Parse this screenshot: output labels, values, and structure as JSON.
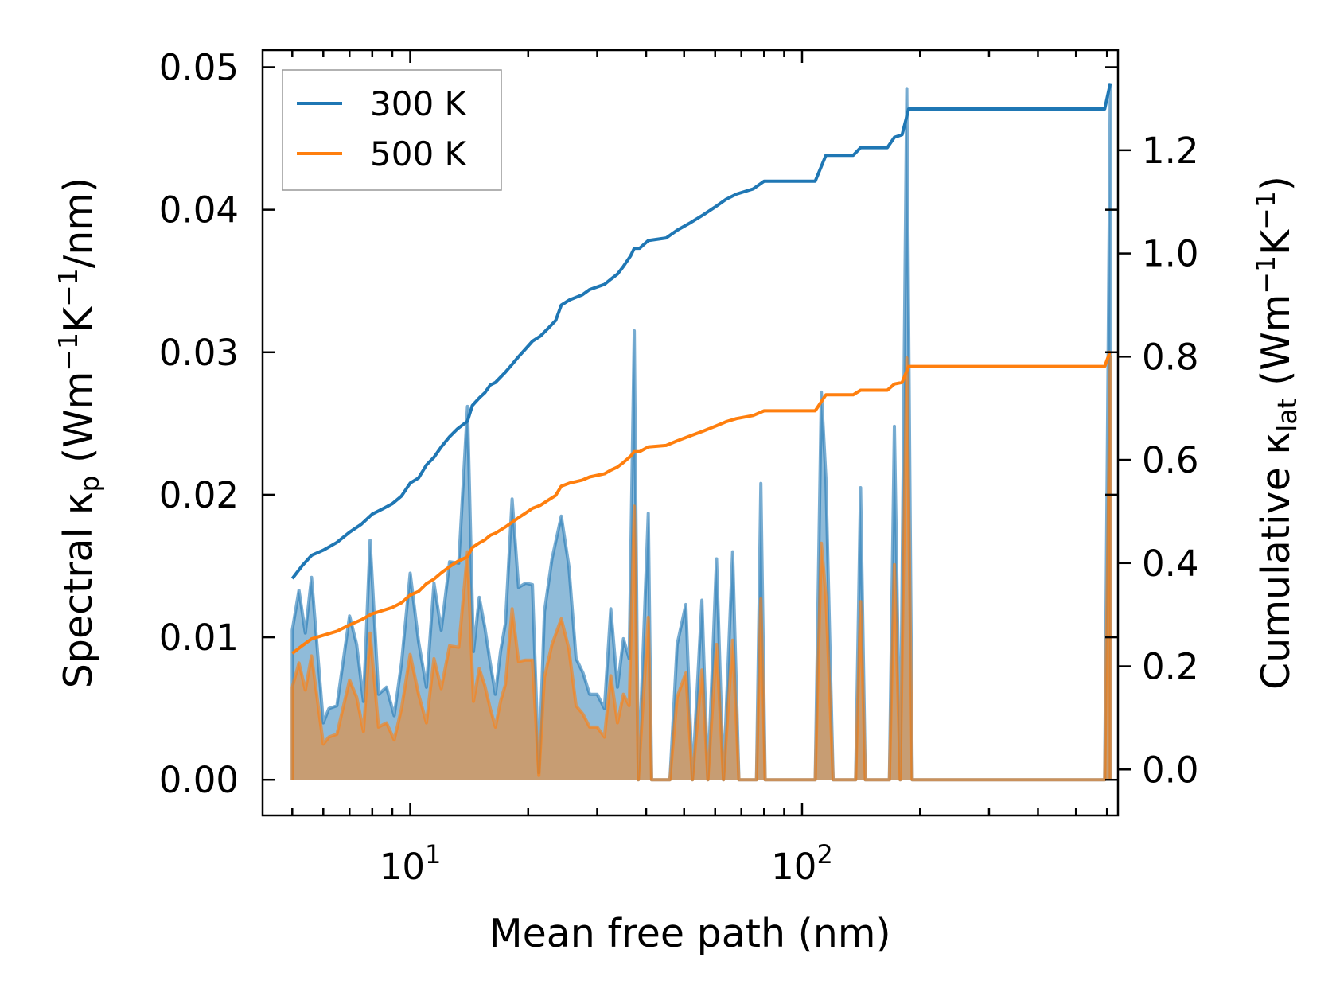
{
  "chart_data": {
    "type": "line",
    "xscale": "log",
    "xlim": [
      4.2,
      640
    ],
    "ylim_left": [
      -0.0025,
      0.0512
    ],
    "ylim_right": [
      -0.089,
      1.394
    ],
    "xlabel": "Mean free path (nm)",
    "ylabel_left": {
      "prefix": "Spectral κ",
      "sub": "p",
      "rest": " (Wm",
      "sup1": "−1",
      "mid": "K",
      "sup2": "−1",
      "end": "/nm)"
    },
    "ylabel_right": {
      "prefix": "Cumulative κ",
      "sub": "lat",
      "rest": " (Wm",
      "sup1": "−1",
      "mid": "K",
      "sup2": "−1",
      "end": ")"
    },
    "xticks": [
      {
        "value": 10,
        "base": "10",
        "exp": "1"
      },
      {
        "value": 100,
        "base": "10",
        "exp": "2"
      }
    ],
    "yticks_left": [
      {
        "value": 0.0,
        "label": "0.00"
      },
      {
        "value": 0.01,
        "label": "0.01"
      },
      {
        "value": 0.02,
        "label": "0.02"
      },
      {
        "value": 0.03,
        "label": "0.03"
      },
      {
        "value": 0.04,
        "label": "0.04"
      },
      {
        "value": 0.05,
        "label": "0.05"
      }
    ],
    "yticks_right": [
      {
        "value": 0.0,
        "label": "0.0"
      },
      {
        "value": 0.2,
        "label": "0.2"
      },
      {
        "value": 0.4,
        "label": "0.4"
      },
      {
        "value": 0.6,
        "label": "0.6"
      },
      {
        "value": 0.8,
        "label": "0.8"
      },
      {
        "value": 1.0,
        "label": "1.0"
      },
      {
        "value": 1.2,
        "label": "1.2"
      }
    ],
    "legend": {
      "placement": "top-left",
      "entries": [
        {
          "label": "300 K",
          "color": "#1f77b4"
        },
        {
          "label": "500 K",
          "color": "#ff7f0e"
        }
      ]
    },
    "series": [
      {
        "name": "300 K",
        "color": "#1f77b4",
        "spectral": [
          [
            5.0,
            0.0
          ],
          [
            5.0,
            0.0105
          ],
          [
            5.2,
            0.0133
          ],
          [
            5.4,
            0.0103
          ],
          [
            5.6,
            0.0142
          ],
          [
            6.0,
            0.004
          ],
          [
            6.2,
            0.005
          ],
          [
            6.5,
            0.0052
          ],
          [
            7.0,
            0.0115
          ],
          [
            7.3,
            0.0095
          ],
          [
            7.6,
            0.0055
          ],
          [
            7.9,
            0.0168
          ],
          [
            8.3,
            0.006
          ],
          [
            8.7,
            0.0065
          ],
          [
            9.1,
            0.0045
          ],
          [
            9.5,
            0.0082
          ],
          [
            10.0,
            0.0145
          ],
          [
            10.5,
            0.0097
          ],
          [
            11.0,
            0.0065
          ],
          [
            11.5,
            0.0138
          ],
          [
            12.0,
            0.0105
          ],
          [
            12.6,
            0.0153
          ],
          [
            13.3,
            0.0152
          ],
          [
            14.0,
            0.0262
          ],
          [
            14.5,
            0.009
          ],
          [
            15.0,
            0.0128
          ],
          [
            15.5,
            0.0107
          ],
          [
            16.0,
            0.0082
          ],
          [
            16.5,
            0.006
          ],
          [
            17.0,
            0.009
          ],
          [
            17.5,
            0.011
          ],
          [
            18.2,
            0.0197
          ],
          [
            18.9,
            0.0135
          ],
          [
            19.7,
            0.0138
          ],
          [
            20.5,
            0.0137
          ],
          [
            21.3,
            0.0005
          ],
          [
            22.0,
            0.0118
          ],
          [
            23.0,
            0.0155
          ],
          [
            24.3,
            0.0185
          ],
          [
            25.4,
            0.015
          ],
          [
            26.5,
            0.0085
          ],
          [
            27.6,
            0.0075
          ],
          [
            28.7,
            0.006
          ],
          [
            30.0,
            0.006
          ],
          [
            31.3,
            0.005
          ],
          [
            32.5,
            0.012
          ],
          [
            33.8,
            0.0065
          ],
          [
            35.0,
            0.0099
          ],
          [
            36.2,
            0.0085
          ],
          [
            37.3,
            0.0315
          ],
          [
            38.2,
            0.0
          ],
          [
            40.5,
            0.0187
          ],
          [
            41.3,
            0.0
          ],
          [
            46.0,
            0.0
          ],
          [
            48.0,
            0.0095
          ],
          [
            50.5,
            0.0123
          ],
          [
            52.5,
            0.0
          ],
          [
            55.5,
            0.0126
          ],
          [
            57.5,
            0.0
          ],
          [
            60.5,
            0.0155
          ],
          [
            63.0,
            0.0
          ],
          [
            66.5,
            0.016
          ],
          [
            69.0,
            0.0
          ],
          [
            76.5,
            0.0
          ],
          [
            78.5,
            0.0208
          ],
          [
            80.5,
            0.0
          ],
          [
            108.0,
            0.0
          ],
          [
            112.0,
            0.0272
          ],
          [
            115.0,
            0.0212
          ],
          [
            120.0,
            0.0
          ],
          [
            137.0,
            0.0
          ],
          [
            141.0,
            0.0205
          ],
          [
            145.0,
            0.0
          ],
          [
            167.0,
            0.0
          ],
          [
            172.0,
            0.0248
          ],
          [
            178.0,
            0.0
          ],
          [
            185.0,
            0.0485
          ],
          [
            191.0,
            0.0
          ],
          [
            592.0,
            0.0
          ],
          [
            612.0,
            0.0487
          ],
          [
            612.0,
            0.0
          ]
        ],
        "cumulative": [
          [
            5.0,
            0.37
          ],
          [
            5.3,
            0.395
          ],
          [
            5.6,
            0.415
          ],
          [
            6.0,
            0.425
          ],
          [
            6.5,
            0.44
          ],
          [
            7.0,
            0.46
          ],
          [
            7.5,
            0.475
          ],
          [
            8.0,
            0.495
          ],
          [
            8.5,
            0.505
          ],
          [
            9.0,
            0.515
          ],
          [
            9.5,
            0.53
          ],
          [
            10.0,
            0.555
          ],
          [
            10.5,
            0.565
          ],
          [
            11.0,
            0.59
          ],
          [
            11.5,
            0.605
          ],
          [
            12.0,
            0.625
          ],
          [
            12.6,
            0.645
          ],
          [
            13.2,
            0.66
          ],
          [
            14.0,
            0.675
          ],
          [
            14.4,
            0.705
          ],
          [
            15.0,
            0.72
          ],
          [
            15.5,
            0.73
          ],
          [
            16.0,
            0.745
          ],
          [
            16.5,
            0.75
          ],
          [
            17.5,
            0.77
          ],
          [
            18.2,
            0.785
          ],
          [
            18.9,
            0.8
          ],
          [
            19.7,
            0.815
          ],
          [
            20.5,
            0.83
          ],
          [
            21.5,
            0.84
          ],
          [
            22.5,
            0.855
          ],
          [
            23.5,
            0.87
          ],
          [
            24.3,
            0.9
          ],
          [
            25.5,
            0.91
          ],
          [
            26.5,
            0.915
          ],
          [
            27.5,
            0.92
          ],
          [
            28.7,
            0.93
          ],
          [
            30.0,
            0.935
          ],
          [
            31.3,
            0.94
          ],
          [
            32.5,
            0.95
          ],
          [
            33.8,
            0.96
          ],
          [
            35.0,
            0.975
          ],
          [
            36.5,
            0.995
          ],
          [
            37.3,
            1.01
          ],
          [
            38.5,
            1.01
          ],
          [
            40.5,
            1.025
          ],
          [
            45.0,
            1.03
          ],
          [
            48.0,
            1.045
          ],
          [
            52.0,
            1.06
          ],
          [
            56.0,
            1.075
          ],
          [
            60.0,
            1.09
          ],
          [
            64.0,
            1.105
          ],
          [
            68.0,
            1.115
          ],
          [
            75.0,
            1.125
          ],
          [
            80.0,
            1.14
          ],
          [
            108.0,
            1.14
          ],
          [
            115.0,
            1.19
          ],
          [
            135.0,
            1.19
          ],
          [
            141.0,
            1.205
          ],
          [
            165.0,
            1.205
          ],
          [
            172.0,
            1.225
          ],
          [
            180.0,
            1.23
          ],
          [
            187.0,
            1.28
          ],
          [
            592.0,
            1.28
          ],
          [
            612.0,
            1.33
          ]
        ]
      },
      {
        "name": "500 K",
        "color": "#ff7f0e",
        "spectral": [
          [
            5.0,
            0.0
          ],
          [
            5.0,
            0.0065
          ],
          [
            5.2,
            0.0082
          ],
          [
            5.4,
            0.0063
          ],
          [
            5.6,
            0.0087
          ],
          [
            6.0,
            0.0025
          ],
          [
            6.2,
            0.003
          ],
          [
            6.5,
            0.0032
          ],
          [
            7.0,
            0.007
          ],
          [
            7.3,
            0.0058
          ],
          [
            7.6,
            0.0034
          ],
          [
            7.9,
            0.0103
          ],
          [
            8.3,
            0.0037
          ],
          [
            8.7,
            0.004
          ],
          [
            9.1,
            0.0028
          ],
          [
            9.5,
            0.005
          ],
          [
            10.0,
            0.0088
          ],
          [
            10.5,
            0.006
          ],
          [
            11.0,
            0.004
          ],
          [
            11.5,
            0.0085
          ],
          [
            12.0,
            0.0064
          ],
          [
            12.6,
            0.0094
          ],
          [
            13.3,
            0.0093
          ],
          [
            14.0,
            0.016
          ],
          [
            14.5,
            0.0055
          ],
          [
            15.0,
            0.0078
          ],
          [
            15.5,
            0.0066
          ],
          [
            16.0,
            0.005
          ],
          [
            16.5,
            0.0037
          ],
          [
            17.0,
            0.0055
          ],
          [
            17.5,
            0.0067
          ],
          [
            18.2,
            0.012
          ],
          [
            18.9,
            0.0083
          ],
          [
            19.7,
            0.0084
          ],
          [
            20.5,
            0.0084
          ],
          [
            21.3,
            0.0003
          ],
          [
            22.0,
            0.0072
          ],
          [
            23.0,
            0.0095
          ],
          [
            24.3,
            0.0113
          ],
          [
            25.4,
            0.0092
          ],
          [
            26.5,
            0.0052
          ],
          [
            27.6,
            0.0046
          ],
          [
            28.7,
            0.0037
          ],
          [
            30.0,
            0.0037
          ],
          [
            31.3,
            0.003
          ],
          [
            32.5,
            0.0073
          ],
          [
            33.8,
            0.004
          ],
          [
            35.0,
            0.006
          ],
          [
            36.2,
            0.0052
          ],
          [
            37.3,
            0.0192
          ],
          [
            38.2,
            0.0
          ],
          [
            40.5,
            0.0114
          ],
          [
            41.3,
            0.0
          ],
          [
            46.0,
            0.0
          ],
          [
            48.0,
            0.0058
          ],
          [
            50.5,
            0.0075
          ],
          [
            52.5,
            0.0
          ],
          [
            55.5,
            0.0077
          ],
          [
            57.5,
            0.0
          ],
          [
            60.5,
            0.0095
          ],
          [
            63.0,
            0.0
          ],
          [
            66.5,
            0.0098
          ],
          [
            69.0,
            0.0
          ],
          [
            76.5,
            0.0
          ],
          [
            78.5,
            0.0127
          ],
          [
            80.5,
            0.0
          ],
          [
            108.0,
            0.0
          ],
          [
            112.0,
            0.0166
          ],
          [
            115.0,
            0.0129
          ],
          [
            120.0,
            0.0
          ],
          [
            137.0,
            0.0
          ],
          [
            141.0,
            0.0125
          ],
          [
            145.0,
            0.0
          ],
          [
            167.0,
            0.0
          ],
          [
            172.0,
            0.0151
          ],
          [
            178.0,
            0.0
          ],
          [
            185.0,
            0.0296
          ],
          [
            191.0,
            0.0
          ],
          [
            592.0,
            0.0
          ],
          [
            612.0,
            0.0297
          ],
          [
            612.0,
            0.0
          ]
        ],
        "cumulative": [
          [
            5.0,
            0.225
          ],
          [
            5.3,
            0.24
          ],
          [
            5.6,
            0.253
          ],
          [
            6.0,
            0.26
          ],
          [
            6.5,
            0.268
          ],
          [
            7.0,
            0.28
          ],
          [
            7.5,
            0.29
          ],
          [
            8.0,
            0.302
          ],
          [
            8.5,
            0.308
          ],
          [
            9.0,
            0.314
          ],
          [
            9.5,
            0.323
          ],
          [
            10.0,
            0.338
          ],
          [
            10.5,
            0.345
          ],
          [
            11.0,
            0.36
          ],
          [
            11.5,
            0.369
          ],
          [
            12.0,
            0.381
          ],
          [
            12.6,
            0.393
          ],
          [
            13.2,
            0.403
          ],
          [
            14.0,
            0.412
          ],
          [
            14.4,
            0.43
          ],
          [
            15.0,
            0.439
          ],
          [
            15.5,
            0.445
          ],
          [
            16.0,
            0.454
          ],
          [
            16.5,
            0.458
          ],
          [
            17.5,
            0.47
          ],
          [
            18.2,
            0.479
          ],
          [
            18.9,
            0.488
          ],
          [
            19.7,
            0.497
          ],
          [
            20.5,
            0.506
          ],
          [
            21.5,
            0.512
          ],
          [
            22.5,
            0.522
          ],
          [
            23.5,
            0.531
          ],
          [
            24.3,
            0.549
          ],
          [
            25.5,
            0.555
          ],
          [
            26.5,
            0.558
          ],
          [
            27.5,
            0.561
          ],
          [
            28.7,
            0.567
          ],
          [
            30.0,
            0.57
          ],
          [
            31.3,
            0.573
          ],
          [
            32.5,
            0.58
          ],
          [
            33.8,
            0.586
          ],
          [
            35.0,
            0.595
          ],
          [
            36.5,
            0.607
          ],
          [
            37.3,
            0.616
          ],
          [
            38.5,
            0.616
          ],
          [
            40.5,
            0.625
          ],
          [
            45.0,
            0.628
          ],
          [
            48.0,
            0.637
          ],
          [
            52.0,
            0.647
          ],
          [
            56.0,
            0.656
          ],
          [
            60.0,
            0.665
          ],
          [
            64.0,
            0.674
          ],
          [
            68.0,
            0.68
          ],
          [
            75.0,
            0.686
          ],
          [
            80.0,
            0.695
          ],
          [
            108.0,
            0.695
          ],
          [
            115.0,
            0.726
          ],
          [
            135.0,
            0.726
          ],
          [
            141.0,
            0.735
          ],
          [
            165.0,
            0.735
          ],
          [
            172.0,
            0.747
          ],
          [
            180.0,
            0.75
          ],
          [
            187.0,
            0.781
          ],
          [
            592.0,
            0.781
          ],
          [
            612.0,
            0.811
          ]
        ]
      }
    ]
  }
}
